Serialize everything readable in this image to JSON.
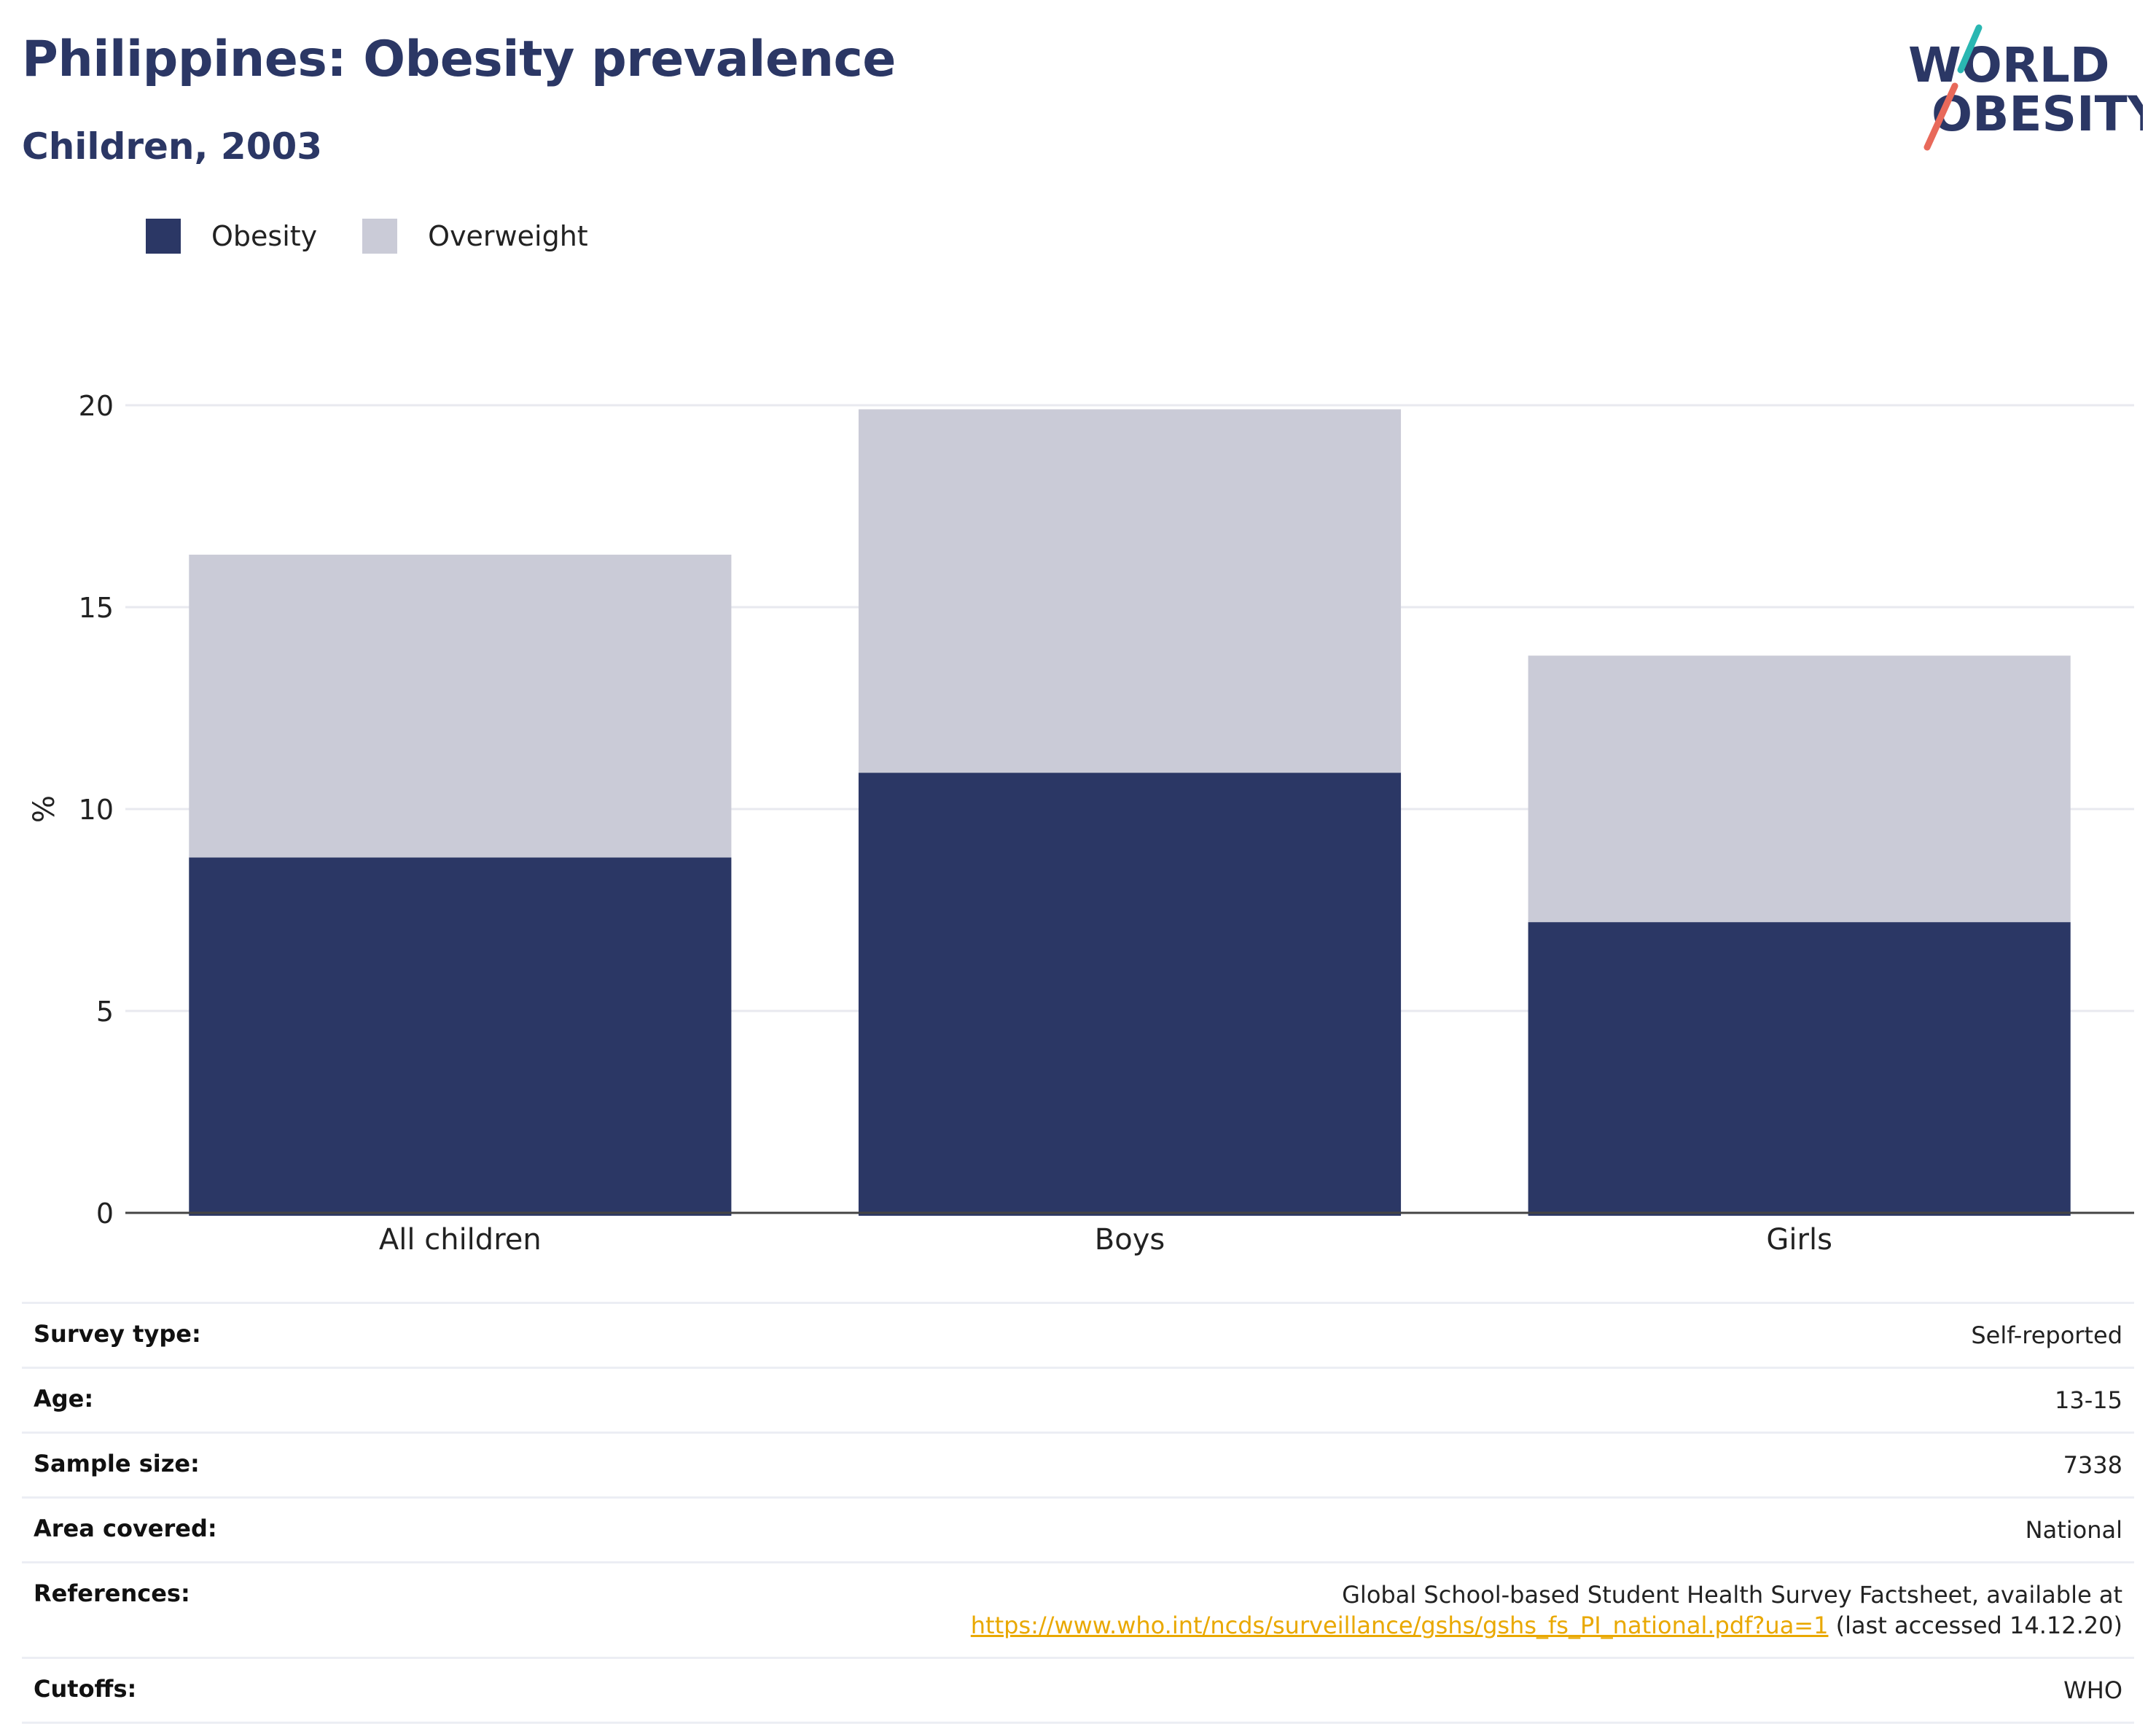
{
  "title": "Philippines: Obesity prevalence",
  "subtitle": "Children, 2003",
  "logo": {
    "line1": "WORLD",
    "line2": "OBESITY",
    "colors": {
      "text": "#2b3765",
      "slash_top": "#2ab7b2",
      "slash_bottom": "#e8695a"
    }
  },
  "legend": [
    {
      "label": "Obesity",
      "color": "#2b3765"
    },
    {
      "label": "Overweight",
      "color": "#cacbd7"
    }
  ],
  "chart_data": {
    "type": "bar",
    "stacked": true,
    "categories": [
      "All children",
      "Boys",
      "Girls"
    ],
    "series": [
      {
        "name": "Obesity",
        "values": [
          8.8,
          10.9,
          7.2
        ],
        "color": "#2b3765"
      },
      {
        "name": "Overweight",
        "values": [
          7.5,
          9.0,
          6.6
        ],
        "color": "#cacbd7"
      }
    ],
    "ylabel": "%",
    "ylim": [
      0,
      20
    ],
    "yticks": [
      0,
      5,
      10,
      15,
      20
    ],
    "grid": true,
    "legend_position": "top-left"
  },
  "info": [
    {
      "label": "Survey type:",
      "value": "Self-reported"
    },
    {
      "label": "Age:",
      "value": "13-15"
    },
    {
      "label": "Sample size:",
      "value": "7338"
    },
    {
      "label": "Area covered:",
      "value": "National"
    },
    {
      "label": "References:",
      "value_line1": "Global School-based Student Health Survey Factsheet, available at",
      "link": "https://www.who.int/ncds/surveillance/gshs/gshs_fs_PI_national.pdf?ua=1",
      "value_suffix": " (last accessed 14.12.20)"
    },
    {
      "label": "Cutoffs:",
      "value": "WHO"
    }
  ]
}
